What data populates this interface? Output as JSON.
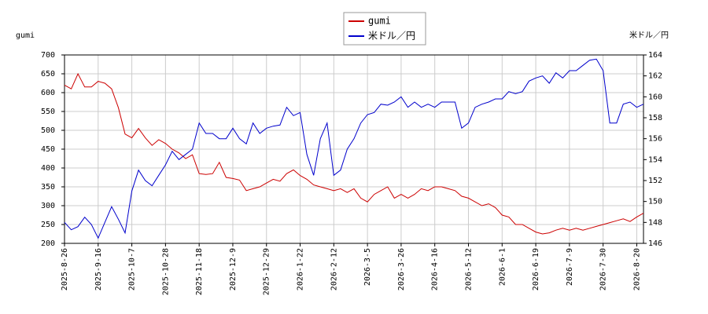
{
  "chart_data": {
    "type": "line",
    "y_label": "gumi",
    "y2_label": "米ドル／円",
    "x": [
      "2025-8-26",
      null,
      null,
      null,
      null,
      "2025-9-16",
      null,
      null,
      null,
      null,
      "2025-10-7",
      null,
      null,
      null,
      null,
      "2025-10-28",
      null,
      null,
      null,
      null,
      "2025-11-18",
      null,
      null,
      null,
      null,
      "2025-12-9",
      null,
      null,
      null,
      null,
      "2025-12-29",
      null,
      null,
      null,
      null,
      "2026-1-22",
      null,
      null,
      null,
      null,
      "2026-2-12",
      null,
      null,
      null,
      null,
      "2026-3-5",
      null,
      null,
      null,
      null,
      "2026-3-26",
      null,
      null,
      null,
      null,
      "2026-4-16",
      null,
      null,
      null,
      null,
      "2026-5-12",
      null,
      null,
      null,
      null,
      "2026-6-1",
      null,
      null,
      null,
      null,
      "2026-6-19",
      null,
      null,
      null,
      null,
      "2026-7-9",
      null,
      null,
      null,
      null,
      "2026-7-30",
      null,
      null,
      null,
      null,
      "2026-8-20",
      null
    ],
    "series": [
      {
        "name": "gumi",
        "color": "#cc0000",
        "axis": "y",
        "values": [
          620,
          610,
          650,
          615,
          615,
          630,
          625,
          610,
          560,
          490,
          480,
          505,
          480,
          460,
          475,
          465,
          450,
          440,
          425,
          435,
          385,
          383,
          385,
          415,
          375,
          372,
          368,
          340,
          345,
          350,
          360,
          370,
          365,
          385,
          395,
          380,
          370,
          355,
          350,
          345,
          340,
          345,
          335,
          345,
          320,
          310,
          330,
          340,
          350,
          320,
          330,
          320,
          330,
          345,
          340,
          350,
          350,
          345,
          340,
          325,
          320,
          310,
          300,
          305,
          295,
          275,
          270,
          250,
          250,
          240,
          230,
          225,
          228,
          235,
          240,
          235,
          240,
          235,
          240,
          245,
          250,
          255,
          260,
          265,
          258,
          270,
          280
        ]
      },
      {
        "name": "米ドル／円",
        "color": "#0000cc",
        "axis": "y2",
        "values": [
          148,
          147.3,
          147.6,
          148.5,
          147.8,
          146.5,
          148,
          149.5,
          148.3,
          147,
          151,
          153,
          152,
          151.5,
          152.5,
          153.5,
          154.8,
          154,
          154.5,
          155,
          157.5,
          156.5,
          156.5,
          156,
          156,
          157,
          156,
          155.5,
          157.5,
          156.5,
          157,
          157.2,
          157.3,
          159,
          158.2,
          158.5,
          154.5,
          152.5,
          156,
          157.5,
          152.5,
          153,
          155,
          156,
          157.5,
          158.3,
          158.5,
          159.3,
          159.2,
          159.5,
          160,
          159,
          159.5,
          159,
          159.3,
          159,
          159.5,
          159.5,
          159.5,
          157,
          157.5,
          159,
          159.3,
          159.5,
          159.8,
          159.8,
          160.5,
          160.3,
          160.5,
          161.5,
          161.8,
          162,
          161.3,
          162.3,
          161.8,
          162.5,
          162.5,
          163,
          163.5,
          163.6,
          162.5,
          157.5,
          157.5,
          159.3,
          159.5,
          159,
          159.3
        ]
      }
    ],
    "ylim": [
      200,
      700
    ],
    "yticks": [
      200,
      250,
      300,
      350,
      400,
      450,
      500,
      550,
      600,
      650,
      700
    ],
    "y2lim": [
      146,
      164
    ],
    "y2ticks": [
      146,
      148,
      150,
      152,
      154,
      156,
      158,
      160,
      162,
      164
    ],
    "grid": true
  }
}
